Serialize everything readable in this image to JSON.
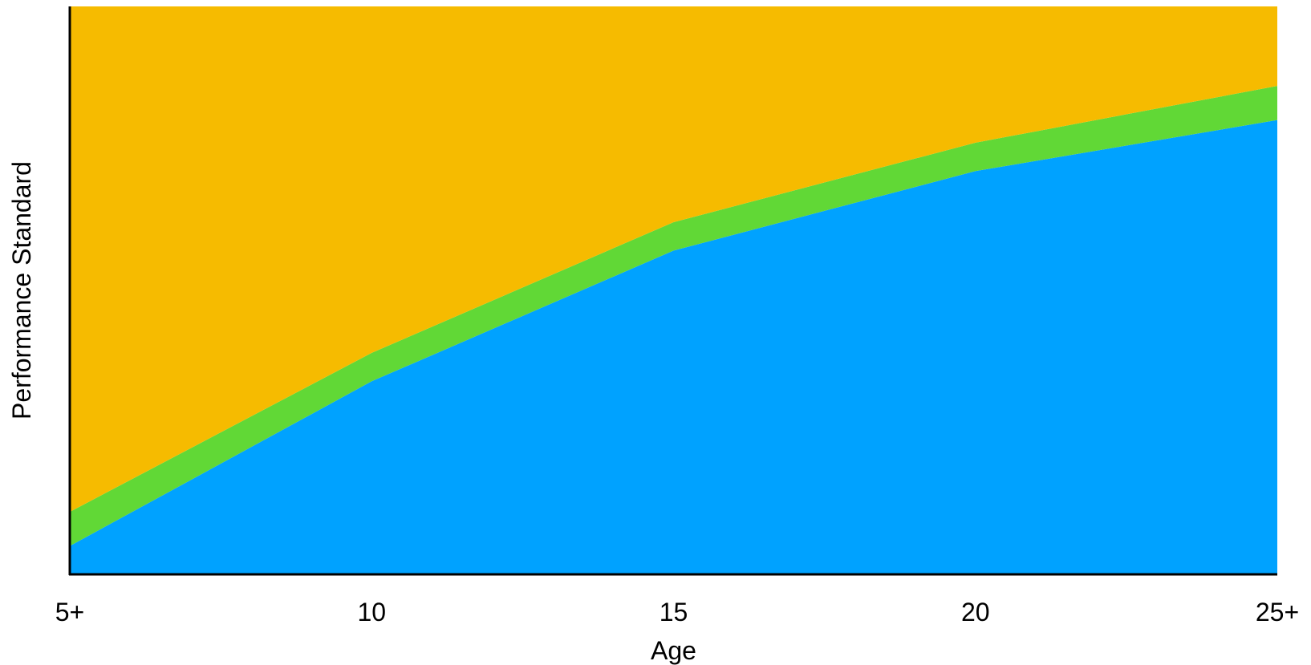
{
  "chart_data": {
    "type": "area",
    "stacked": true,
    "x": [
      5,
      10,
      15,
      20,
      25
    ],
    "x_tick_labels": [
      "5+",
      "10",
      "15",
      "20",
      "25+"
    ],
    "xlabel": "Age",
    "ylabel": "Performance Standard",
    "xlim": [
      5,
      25
    ],
    "ylim": [
      0,
      100
    ],
    "y_ticks_shown": false,
    "grid": false,
    "legend": "none",
    "series": [
      {
        "values": [
          5,
          34,
          57,
          71,
          80
        ],
        "color": "#00A2FF"
      },
      {
        "values": [
          6,
          5,
          5,
          5,
          6
        ],
        "color": "#61D836"
      },
      {
        "values": [
          89,
          61,
          38,
          24,
          14
        ],
        "color": "#F6BB00"
      }
    ]
  }
}
